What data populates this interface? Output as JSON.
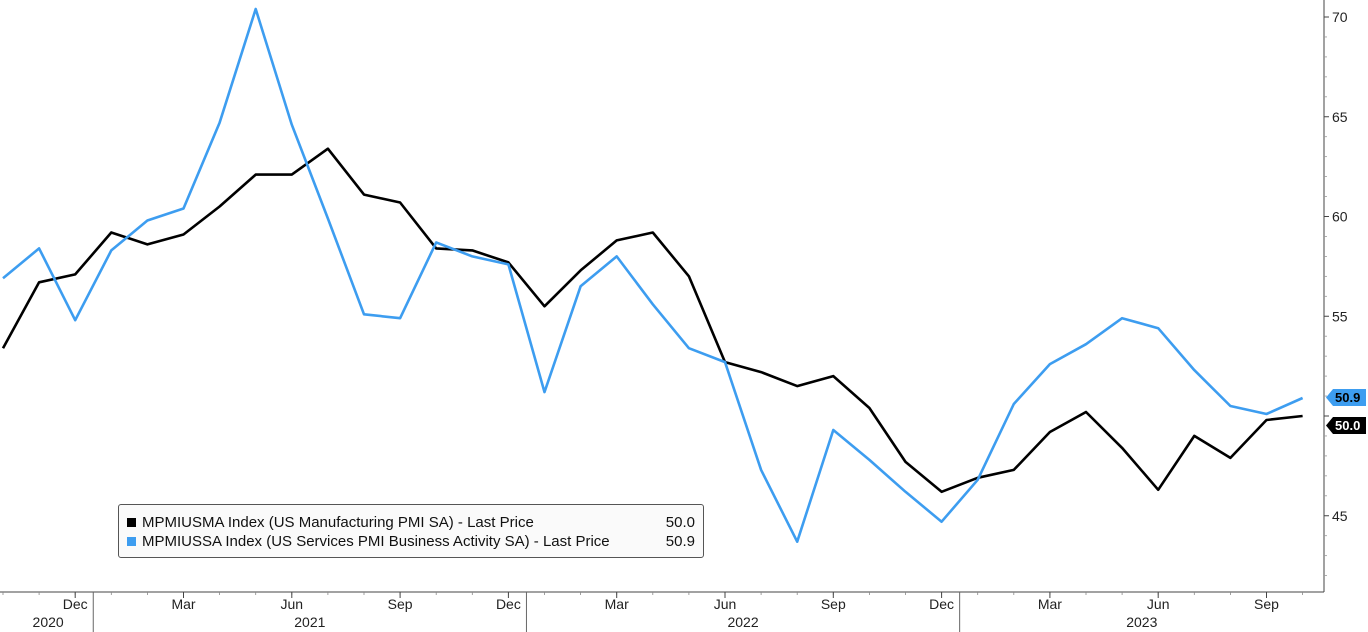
{
  "chart_data": {
    "type": "line",
    "x": [
      "2020-10",
      "2020-11",
      "2020-12",
      "2021-01",
      "2021-02",
      "2021-03",
      "2021-04",
      "2021-05",
      "2021-06",
      "2021-07",
      "2021-08",
      "2021-09",
      "2021-10",
      "2021-11",
      "2021-12",
      "2022-01",
      "2022-02",
      "2022-03",
      "2022-04",
      "2022-05",
      "2022-06",
      "2022-07",
      "2022-08",
      "2022-09",
      "2022-10",
      "2022-11",
      "2022-12",
      "2023-01",
      "2023-02",
      "2023-03",
      "2023-04",
      "2023-05",
      "2023-06",
      "2023-07",
      "2023-08",
      "2023-09",
      "2023-10"
    ],
    "series": [
      {
        "name": "MPMIUSMA Index (US Manufacturing PMI SA) - Last Price",
        "color": "#000000",
        "values": [
          53.4,
          56.7,
          57.1,
          59.2,
          58.6,
          59.1,
          60.5,
          62.1,
          62.1,
          63.4,
          61.1,
          60.7,
          58.4,
          58.3,
          57.7,
          55.5,
          57.3,
          58.8,
          59.2,
          57.0,
          52.7,
          52.2,
          51.5,
          52.0,
          50.4,
          47.7,
          46.2,
          46.9,
          47.3,
          49.2,
          50.2,
          48.4,
          46.3,
          49.0,
          47.9,
          49.8,
          50.0
        ]
      },
      {
        "name": "MPMIUSSA Index (US Services PMI Business Activity SA) - Last Price",
        "color": "#3d9df0",
        "values": [
          56.9,
          58.4,
          54.8,
          58.3,
          59.8,
          60.4,
          64.7,
          70.4,
          64.6,
          59.9,
          55.1,
          54.9,
          58.7,
          58.0,
          57.6,
          51.2,
          56.5,
          58.0,
          55.6,
          53.4,
          52.7,
          47.3,
          43.7,
          49.3,
          47.8,
          46.2,
          44.7,
          46.8,
          50.6,
          52.6,
          53.6,
          54.9,
          54.4,
          52.3,
          50.5,
          50.1,
          50.9
        ]
      }
    ],
    "last_values": {
      "manufacturing": "50.0",
      "services": "50.9"
    },
    "ylim": [
      41.5,
      71.5
    ],
    "yticks": [
      45,
      50,
      55,
      60,
      65,
      70
    ],
    "ytick_labels": [
      "45",
      "",
      "55",
      "60",
      "65",
      "70"
    ],
    "month_ticks": [
      {
        "index": 2,
        "label": "Dec"
      },
      {
        "index": 5,
        "label": "Mar"
      },
      {
        "index": 8,
        "label": "Jun"
      },
      {
        "index": 11,
        "label": "Sep"
      },
      {
        "index": 14,
        "label": "Dec"
      },
      {
        "index": 17,
        "label": "Mar"
      },
      {
        "index": 20,
        "label": "Jun"
      },
      {
        "index": 23,
        "label": "Sep"
      },
      {
        "index": 26,
        "label": "Dec"
      },
      {
        "index": 29,
        "label": "Mar"
      },
      {
        "index": 32,
        "label": "Jun"
      },
      {
        "index": 35,
        "label": "Sep"
      }
    ],
    "year_labels": [
      {
        "label": "2020",
        "from": 0,
        "to": 2.5
      },
      {
        "label": "2021",
        "from": 2.5,
        "to": 14.5
      },
      {
        "label": "2022",
        "from": 14.5,
        "to": 26.5
      },
      {
        "label": "2023",
        "from": 26.5,
        "to": 36.6
      }
    ],
    "legend_placement": "bottom-left",
    "grid": false
  },
  "legend": {
    "items": [
      {
        "text": "MPMIUSMA Index (US Manufacturing PMI SA)  - Last Price",
        "value": "50.0",
        "color": "#000000"
      },
      {
        "text": "MPMIUSSA Index (US Services PMI Business Activity SA)  - Last Price",
        "value": "50.9",
        "color": "#3d9df0"
      }
    ]
  }
}
